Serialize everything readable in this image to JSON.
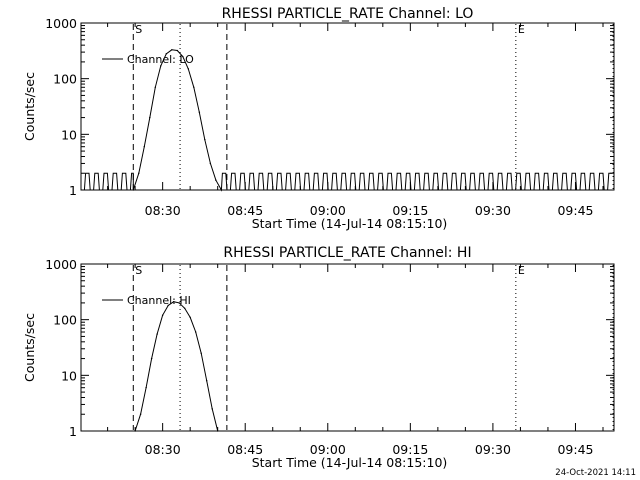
{
  "footer": {
    "timestamp": "24-Oct-2021 14:11"
  },
  "chart_data": [
    {
      "type": "line",
      "title": "RHESSI PARTICLE_RATE Channel: LO",
      "xlabel": "Start Time (14-Jul-14 08:15:10)",
      "ylabel": "Counts/sec",
      "y_scale": "log",
      "xlim": [
        "08:15:10",
        "09:52:00"
      ],
      "ylim": [
        1,
        1000
      ],
      "x_ticks": [
        "08:30",
        "08:45",
        "09:00",
        "09:15",
        "09:30",
        "09:45"
      ],
      "y_ticks": [
        "1",
        "10",
        "100",
        "1000"
      ],
      "legend": "upper-left",
      "markers": [
        {
          "label": "S",
          "time": "08:24:40",
          "style": "dashed"
        },
        {
          "label": "",
          "time": "08:41:40",
          "style": "dashed"
        },
        {
          "label": "",
          "time": "08:33:10",
          "style": "dotted"
        },
        {
          "label": "E",
          "time": "09:34:10",
          "style": "dotted"
        },
        {
          "label": "",
          "time": "09:51:50",
          "style": "dotted"
        }
      ],
      "series": [
        {
          "name": "Channel: LO",
          "x": [
            "08:24:40",
            "08:25:40",
            "08:26:40",
            "08:27:40",
            "08:28:40",
            "08:29:40",
            "08:30:40",
            "08:31:40",
            "08:32:40",
            "08:33:40",
            "08:34:40",
            "08:35:40",
            "08:36:40",
            "08:37:40",
            "08:38:40",
            "08:39:40",
            "08:40:40"
          ],
          "y": [
            1,
            2,
            6,
            20,
            70,
            170,
            280,
            330,
            320,
            250,
            150,
            70,
            25,
            8,
            3,
            1.5,
            1
          ],
          "baseline": {
            "from": "08:15:10",
            "to": "09:51:50",
            "low": 1,
            "high": 2,
            "pattern": "alternating"
          }
        }
      ]
    },
    {
      "type": "line",
      "title": "RHESSI PARTICLE_RATE Channel: HI",
      "xlabel": "Start Time (14-Jul-14 08:15:10)",
      "ylabel": "Counts/sec",
      "y_scale": "log",
      "xlim": [
        "08:15:10",
        "09:52:00"
      ],
      "ylim": [
        1,
        1000
      ],
      "x_ticks": [
        "08:30",
        "08:45",
        "09:00",
        "09:15",
        "09:30",
        "09:45"
      ],
      "y_ticks": [
        "1",
        "10",
        "100",
        "1000"
      ],
      "legend": "upper-left",
      "markers": [
        {
          "label": "S",
          "time": "08:24:40",
          "style": "dashed"
        },
        {
          "label": "",
          "time": "08:41:40",
          "style": "dashed"
        },
        {
          "label": "",
          "time": "08:33:10",
          "style": "dotted"
        },
        {
          "label": "E",
          "time": "09:34:10",
          "style": "dotted"
        },
        {
          "label": "",
          "time": "09:51:50",
          "style": "dotted"
        }
      ],
      "series": [
        {
          "name": "Channel: HI",
          "x": [
            "08:25:00",
            "08:26:00",
            "08:27:00",
            "08:28:00",
            "08:29:00",
            "08:30:00",
            "08:31:00",
            "08:32:00",
            "08:33:00",
            "08:34:00",
            "08:35:00",
            "08:36:00",
            "08:37:00",
            "08:38:00",
            "08:39:00",
            "08:40:00"
          ],
          "y": [
            1,
            2,
            6,
            20,
            55,
            120,
            180,
            210,
            200,
            160,
            110,
            60,
            25,
            8,
            2.5,
            1
          ]
        }
      ]
    }
  ]
}
